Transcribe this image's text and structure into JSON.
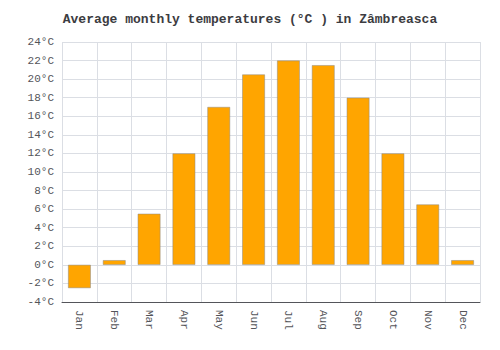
{
  "chart_data": {
    "type": "bar",
    "title": "Average monthly temperatures (°C ) in Zâmbreasca",
    "categories": [
      "Jan",
      "Feb",
      "Mar",
      "Apr",
      "May",
      "Jun",
      "Jul",
      "Aug",
      "Sep",
      "Oct",
      "Nov",
      "Dec"
    ],
    "values": [
      -2.5,
      0.5,
      5.5,
      12.0,
      17.0,
      20.5,
      22.0,
      21.5,
      18.0,
      12.0,
      6.5,
      0.5
    ],
    "color": "#FFA500",
    "ylim": [
      -4,
      24
    ],
    "yticks": [
      {
        "value": -4,
        "label": "-4°C"
      },
      {
        "value": -2,
        "label": "-2°C"
      },
      {
        "value": 0,
        "label": "0°C"
      },
      {
        "value": 2,
        "label": "2°C"
      },
      {
        "value": 4,
        "label": "4°C"
      },
      {
        "value": 6,
        "label": "6°C"
      },
      {
        "value": 8,
        "label": "8°C"
      },
      {
        "value": 10,
        "label": "10°C"
      },
      {
        "value": 12,
        "label": "12°C"
      },
      {
        "value": 14,
        "label": "14°C"
      },
      {
        "value": 16,
        "label": "16°C"
      },
      {
        "value": 18,
        "label": "18°C"
      },
      {
        "value": 20,
        "label": "20°C"
      },
      {
        "value": 22,
        "label": "22°C"
      },
      {
        "value": 24,
        "label": "24°C"
      }
    ],
    "grid": true
  }
}
